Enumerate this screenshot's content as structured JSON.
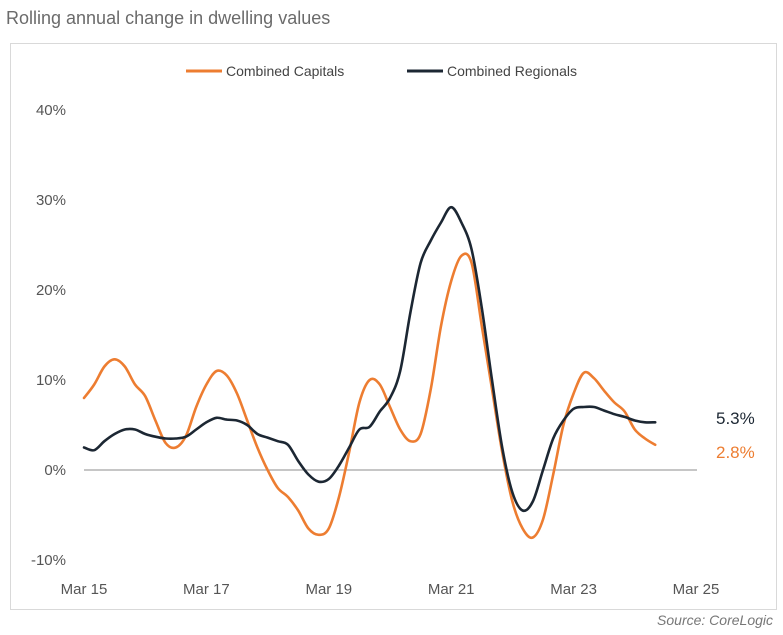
{
  "title": "Rolling annual change in dwelling values",
  "source": "Source: CoreLogic",
  "colors": {
    "capitals": "#ed7d31",
    "regionals": "#1c2733",
    "zero_line": "#8c8c8c"
  },
  "chart_data": {
    "type": "line",
    "title": "Rolling annual change in dwelling values",
    "xlabel": "",
    "ylabel": "",
    "x_tick_labels": [
      "Mar 15",
      "Mar 17",
      "Mar 19",
      "Mar 21",
      "Mar 23",
      "Mar 25"
    ],
    "y_tick_labels": [
      "40%",
      "30%",
      "20%",
      "10%",
      "0%",
      "-10%"
    ],
    "y_ticks": [
      40,
      30,
      20,
      10,
      0,
      -10
    ],
    "ylim": [
      -10,
      40
    ],
    "xlim": [
      "2015-03",
      "2025-03"
    ],
    "legend_position": "top-center",
    "grid": false,
    "end_labels": {
      "regionals": "5.3%",
      "capitals": "2.8%"
    },
    "series": [
      {
        "name": "Combined Capitals",
        "color": "#ed7d31",
        "points": [
          [
            "2015-03",
            8.0
          ],
          [
            "2015-05",
            9.5
          ],
          [
            "2015-07",
            11.5
          ],
          [
            "2015-09",
            12.3
          ],
          [
            "2015-11",
            11.5
          ],
          [
            "2016-01",
            9.5
          ],
          [
            "2016-03",
            8.2
          ],
          [
            "2016-05",
            5.5
          ],
          [
            "2016-07",
            3.0
          ],
          [
            "2016-09",
            2.5
          ],
          [
            "2016-11",
            3.8
          ],
          [
            "2017-01",
            7.0
          ],
          [
            "2017-03",
            9.5
          ],
          [
            "2017-05",
            11.0
          ],
          [
            "2017-07",
            10.5
          ],
          [
            "2017-09",
            8.5
          ],
          [
            "2017-11",
            5.5
          ],
          [
            "2018-01",
            2.5
          ],
          [
            "2018-03",
            0.0
          ],
          [
            "2018-05",
            -2.0
          ],
          [
            "2018-07",
            -3.0
          ],
          [
            "2018-09",
            -4.5
          ],
          [
            "2018-11",
            -6.5
          ],
          [
            "2019-01",
            -7.2
          ],
          [
            "2019-03",
            -6.5
          ],
          [
            "2019-05",
            -3.0
          ],
          [
            "2019-07",
            2.0
          ],
          [
            "2019-09",
            7.5
          ],
          [
            "2019-11",
            10.0
          ],
          [
            "2020-01",
            9.5
          ],
          [
            "2020-03",
            7.0
          ],
          [
            "2020-05",
            4.5
          ],
          [
            "2020-07",
            3.2
          ],
          [
            "2020-09",
            4.0
          ],
          [
            "2020-11",
            9.0
          ],
          [
            "2021-01",
            16.0
          ],
          [
            "2021-03",
            21.0
          ],
          [
            "2021-05",
            23.8
          ],
          [
            "2021-07",
            23.0
          ],
          [
            "2021-09",
            16.0
          ],
          [
            "2021-11",
            9.0
          ],
          [
            "2022-01",
            2.0
          ],
          [
            "2022-03",
            -3.5
          ],
          [
            "2022-05",
            -6.5
          ],
          [
            "2022-07",
            -7.5
          ],
          [
            "2022-09",
            -5.5
          ],
          [
            "2022-11",
            -0.5
          ],
          [
            "2023-01",
            5.0
          ],
          [
            "2023-03",
            8.5
          ],
          [
            "2023-05",
            10.8
          ],
          [
            "2023-07",
            10.2
          ],
          [
            "2023-09",
            8.8
          ],
          [
            "2023-11",
            7.5
          ],
          [
            "2024-01",
            6.5
          ],
          [
            "2024-03",
            4.5
          ],
          [
            "2024-05",
            3.5
          ],
          [
            "2024-07",
            2.8
          ]
        ]
      },
      {
        "name": "Combined Regionals",
        "color": "#1c2733",
        "points": [
          [
            "2015-03",
            2.5
          ],
          [
            "2015-05",
            2.2
          ],
          [
            "2015-07",
            3.2
          ],
          [
            "2015-09",
            4.0
          ],
          [
            "2015-11",
            4.5
          ],
          [
            "2016-01",
            4.5
          ],
          [
            "2016-03",
            4.0
          ],
          [
            "2016-05",
            3.7
          ],
          [
            "2016-07",
            3.5
          ],
          [
            "2016-09",
            3.5
          ],
          [
            "2016-11",
            3.7
          ],
          [
            "2017-01",
            4.5
          ],
          [
            "2017-03",
            5.3
          ],
          [
            "2017-05",
            5.8
          ],
          [
            "2017-07",
            5.6
          ],
          [
            "2017-09",
            5.5
          ],
          [
            "2017-11",
            5.0
          ],
          [
            "2018-01",
            4.0
          ],
          [
            "2018-03",
            3.6
          ],
          [
            "2018-05",
            3.2
          ],
          [
            "2018-07",
            2.8
          ],
          [
            "2018-09",
            1.0
          ],
          [
            "2018-11",
            -0.5
          ],
          [
            "2019-01",
            -1.3
          ],
          [
            "2019-03",
            -1.0
          ],
          [
            "2019-05",
            0.5
          ],
          [
            "2019-07",
            2.5
          ],
          [
            "2019-09",
            4.5
          ],
          [
            "2019-11",
            4.8
          ],
          [
            "2020-01",
            6.5
          ],
          [
            "2020-03",
            8.0
          ],
          [
            "2020-05",
            11.0
          ],
          [
            "2020-07",
            17.5
          ],
          [
            "2020-09",
            23.0
          ],
          [
            "2020-11",
            25.5
          ],
          [
            "2021-01",
            27.5
          ],
          [
            "2021-03",
            29.2
          ],
          [
            "2021-05",
            27.5
          ],
          [
            "2021-07",
            24.5
          ],
          [
            "2021-09",
            18.0
          ],
          [
            "2021-11",
            10.0
          ],
          [
            "2022-01",
            2.5
          ],
          [
            "2022-03",
            -2.5
          ],
          [
            "2022-05",
            -4.5
          ],
          [
            "2022-07",
            -3.5
          ],
          [
            "2022-09",
            0.0
          ],
          [
            "2022-11",
            3.5
          ],
          [
            "2023-01",
            5.5
          ],
          [
            "2023-03",
            6.8
          ],
          [
            "2023-05",
            7.0
          ],
          [
            "2023-07",
            7.0
          ],
          [
            "2023-09",
            6.6
          ],
          [
            "2023-11",
            6.2
          ],
          [
            "2024-01",
            5.9
          ],
          [
            "2024-03",
            5.5
          ],
          [
            "2024-05",
            5.3
          ],
          [
            "2024-07",
            5.3
          ]
        ]
      }
    ]
  }
}
